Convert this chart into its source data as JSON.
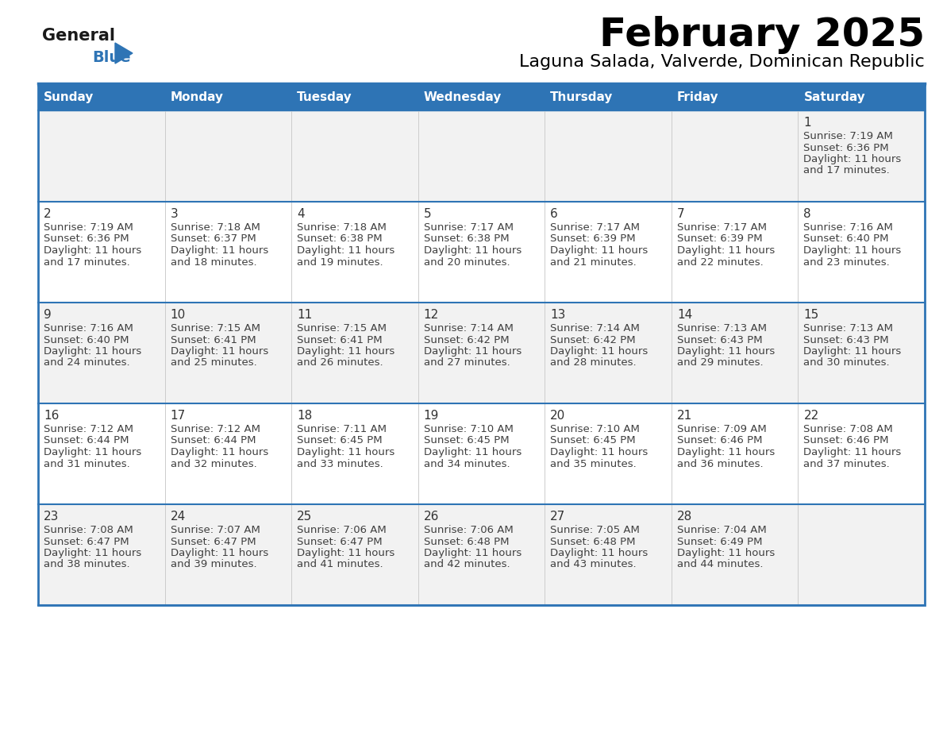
{
  "title": "February 2025",
  "subtitle": "Laguna Salada, Valverde, Dominican Republic",
  "days_of_week": [
    "Sunday",
    "Monday",
    "Tuesday",
    "Wednesday",
    "Thursday",
    "Friday",
    "Saturday"
  ],
  "header_bg": "#2E74B5",
  "header_text": "#FFFFFF",
  "row_bg_white": "#FFFFFF",
  "row_bg_gray": "#F2F2F2",
  "cell_text_color": "#404040",
  "day_num_color": "#333333",
  "border_color": "#2E74B5",
  "logo_general_color": "#1a1a1a",
  "logo_blue_color": "#2E74B5",
  "calendar_data": [
    [
      null,
      null,
      null,
      null,
      null,
      null,
      {
        "day": 1,
        "sunrise": "7:19 AM",
        "sunset": "6:36 PM",
        "daylight": "11 hours and 17 minutes."
      }
    ],
    [
      {
        "day": 2,
        "sunrise": "7:19 AM",
        "sunset": "6:36 PM",
        "daylight": "11 hours and 17 minutes."
      },
      {
        "day": 3,
        "sunrise": "7:18 AM",
        "sunset": "6:37 PM",
        "daylight": "11 hours and 18 minutes."
      },
      {
        "day": 4,
        "sunrise": "7:18 AM",
        "sunset": "6:38 PM",
        "daylight": "11 hours and 19 minutes."
      },
      {
        "day": 5,
        "sunrise": "7:17 AM",
        "sunset": "6:38 PM",
        "daylight": "11 hours and 20 minutes."
      },
      {
        "day": 6,
        "sunrise": "7:17 AM",
        "sunset": "6:39 PM",
        "daylight": "11 hours and 21 minutes."
      },
      {
        "day": 7,
        "sunrise": "7:17 AM",
        "sunset": "6:39 PM",
        "daylight": "11 hours and 22 minutes."
      },
      {
        "day": 8,
        "sunrise": "7:16 AM",
        "sunset": "6:40 PM",
        "daylight": "11 hours and 23 minutes."
      }
    ],
    [
      {
        "day": 9,
        "sunrise": "7:16 AM",
        "sunset": "6:40 PM",
        "daylight": "11 hours and 24 minutes."
      },
      {
        "day": 10,
        "sunrise": "7:15 AM",
        "sunset": "6:41 PM",
        "daylight": "11 hours and 25 minutes."
      },
      {
        "day": 11,
        "sunrise": "7:15 AM",
        "sunset": "6:41 PM",
        "daylight": "11 hours and 26 minutes."
      },
      {
        "day": 12,
        "sunrise": "7:14 AM",
        "sunset": "6:42 PM",
        "daylight": "11 hours and 27 minutes."
      },
      {
        "day": 13,
        "sunrise": "7:14 AM",
        "sunset": "6:42 PM",
        "daylight": "11 hours and 28 minutes."
      },
      {
        "day": 14,
        "sunrise": "7:13 AM",
        "sunset": "6:43 PM",
        "daylight": "11 hours and 29 minutes."
      },
      {
        "day": 15,
        "sunrise": "7:13 AM",
        "sunset": "6:43 PM",
        "daylight": "11 hours and 30 minutes."
      }
    ],
    [
      {
        "day": 16,
        "sunrise": "7:12 AM",
        "sunset": "6:44 PM",
        "daylight": "11 hours and 31 minutes."
      },
      {
        "day": 17,
        "sunrise": "7:12 AM",
        "sunset": "6:44 PM",
        "daylight": "11 hours and 32 minutes."
      },
      {
        "day": 18,
        "sunrise": "7:11 AM",
        "sunset": "6:45 PM",
        "daylight": "11 hours and 33 minutes."
      },
      {
        "day": 19,
        "sunrise": "7:10 AM",
        "sunset": "6:45 PM",
        "daylight": "11 hours and 34 minutes."
      },
      {
        "day": 20,
        "sunrise": "7:10 AM",
        "sunset": "6:45 PM",
        "daylight": "11 hours and 35 minutes."
      },
      {
        "day": 21,
        "sunrise": "7:09 AM",
        "sunset": "6:46 PM",
        "daylight": "11 hours and 36 minutes."
      },
      {
        "day": 22,
        "sunrise": "7:08 AM",
        "sunset": "6:46 PM",
        "daylight": "11 hours and 37 minutes."
      }
    ],
    [
      {
        "day": 23,
        "sunrise": "7:08 AM",
        "sunset": "6:47 PM",
        "daylight": "11 hours and 38 minutes."
      },
      {
        "day": 24,
        "sunrise": "7:07 AM",
        "sunset": "6:47 PM",
        "daylight": "11 hours and 39 minutes."
      },
      {
        "day": 25,
        "sunrise": "7:06 AM",
        "sunset": "6:47 PM",
        "daylight": "11 hours and 41 minutes."
      },
      {
        "day": 26,
        "sunrise": "7:06 AM",
        "sunset": "6:48 PM",
        "daylight": "11 hours and 42 minutes."
      },
      {
        "day": 27,
        "sunrise": "7:05 AM",
        "sunset": "6:48 PM",
        "daylight": "11 hours and 43 minutes."
      },
      {
        "day": 28,
        "sunrise": "7:04 AM",
        "sunset": "6:49 PM",
        "daylight": "11 hours and 44 minutes."
      },
      null
    ]
  ]
}
